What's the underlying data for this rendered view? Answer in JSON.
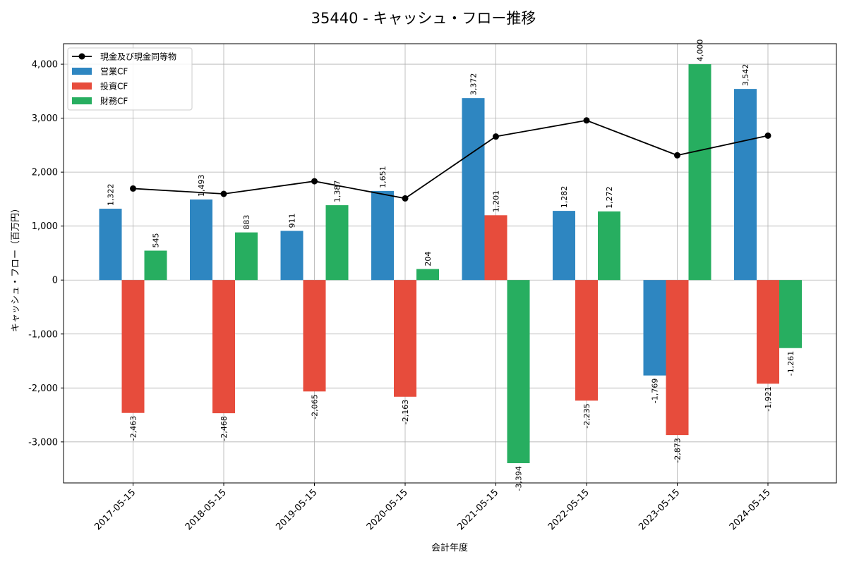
{
  "chart_data": {
    "type": "bar",
    "title": "35440 - キャッシュ・フロー推移",
    "xlabel": "会計年度",
    "ylabel": "キャッシュ・フロー（百万円）",
    "categories": [
      "2017-05-15",
      "2018-05-15",
      "2019-05-15",
      "2020-05-15",
      "2021-05-15",
      "2022-05-15",
      "2023-05-15",
      "2024-05-15"
    ],
    "series": [
      {
        "name": "営業CF",
        "kind": "bar",
        "color": "#2e86c1",
        "values": [
          1322,
          1493,
          911,
          1651,
          3372,
          1282,
          -1769,
          3542
        ]
      },
      {
        "name": "投資CF",
        "kind": "bar",
        "color": "#e74c3c",
        "values": [
          -2463,
          -2468,
          -2065,
          -2163,
          1201,
          -2235,
          -2873,
          -1921
        ]
      },
      {
        "name": "財務CF",
        "kind": "bar",
        "color": "#27ae60",
        "values": [
          545,
          883,
          1387,
          204,
          -3394,
          1272,
          4000,
          -1261
        ]
      },
      {
        "name": "現金及び現金同等物",
        "kind": "line",
        "color": "#000000",
        "values": [
          1696,
          1597,
          1831,
          1513,
          2660,
          2959,
          2312,
          2676
        ]
      }
    ],
    "data_labels": {
      "営業CF": [
        "1,322",
        "1,493",
        "911",
        "1,651",
        "3,372",
        "1,282",
        "-1,769",
        "3,542"
      ],
      "投資CF": [
        "-2,463",
        "-2,468",
        "-2,065",
        "-2,163",
        "1,201",
        "-2,235",
        "-2,873",
        "-1,921"
      ],
      "財務CF": [
        "545",
        "883",
        "1,387",
        "204",
        "-3,394",
        "1,272",
        "4,000",
        "-1,261"
      ]
    },
    "yticks": [
      -3000,
      -2000,
      -1000,
      0,
      1000,
      2000,
      3000,
      4000
    ],
    "ytick_labels": [
      "-3,000",
      "-2,000",
      "-1,000",
      "0",
      "1,000",
      "2,000",
      "3,000",
      "4,000"
    ],
    "ylim": [
      -3760,
      4380
    ],
    "grid": true,
    "legend_position": "top-left"
  }
}
